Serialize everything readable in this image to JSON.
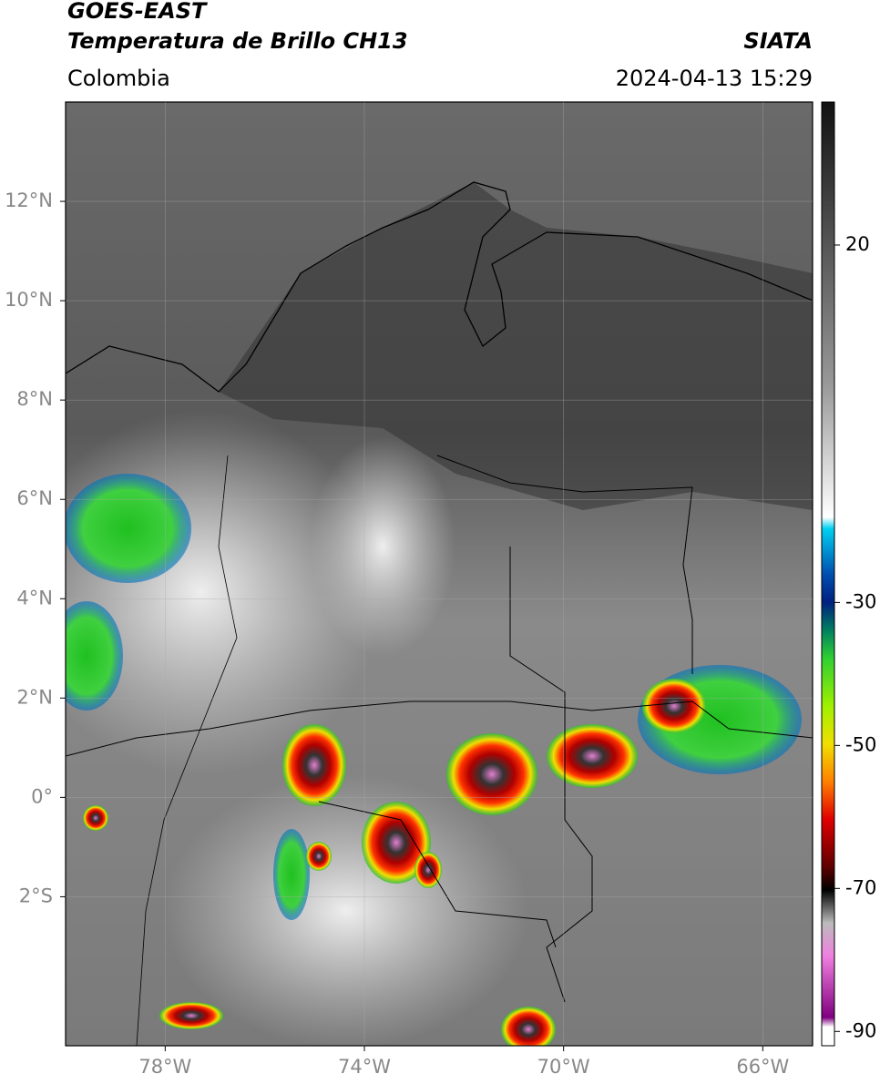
{
  "header": {
    "title": "GOES-EAST",
    "subtitle": "Temperatura de Brillo CH13",
    "source": "SIATA",
    "region": "Colombia",
    "datetime": "2024-04-13 15:29"
  },
  "map": {
    "xlim": [
      -80,
      -65
    ],
    "ylim": [
      -5,
      14
    ],
    "xticks": [
      {
        "value": -78,
        "label": "78°W"
      },
      {
        "value": -74,
        "label": "74°W"
      },
      {
        "value": -70,
        "label": "70°W"
      },
      {
        "value": -66,
        "label": "66°W"
      }
    ],
    "yticks": [
      {
        "value": 12,
        "label": "12°N"
      },
      {
        "value": 10,
        "label": "10°N"
      },
      {
        "value": 8,
        "label": "8°N"
      },
      {
        "value": 6,
        "label": "6°N"
      },
      {
        "value": 4,
        "label": "4°N"
      },
      {
        "value": 2,
        "label": "2°N"
      },
      {
        "value": 0,
        "label": "0°"
      },
      {
        "value": -2,
        "label": "2°S"
      }
    ],
    "grid": true
  },
  "colorbar": {
    "lim": [
      -92,
      40
    ],
    "ticks": [
      20,
      -30,
      -50,
      -70,
      -90
    ]
  }
}
